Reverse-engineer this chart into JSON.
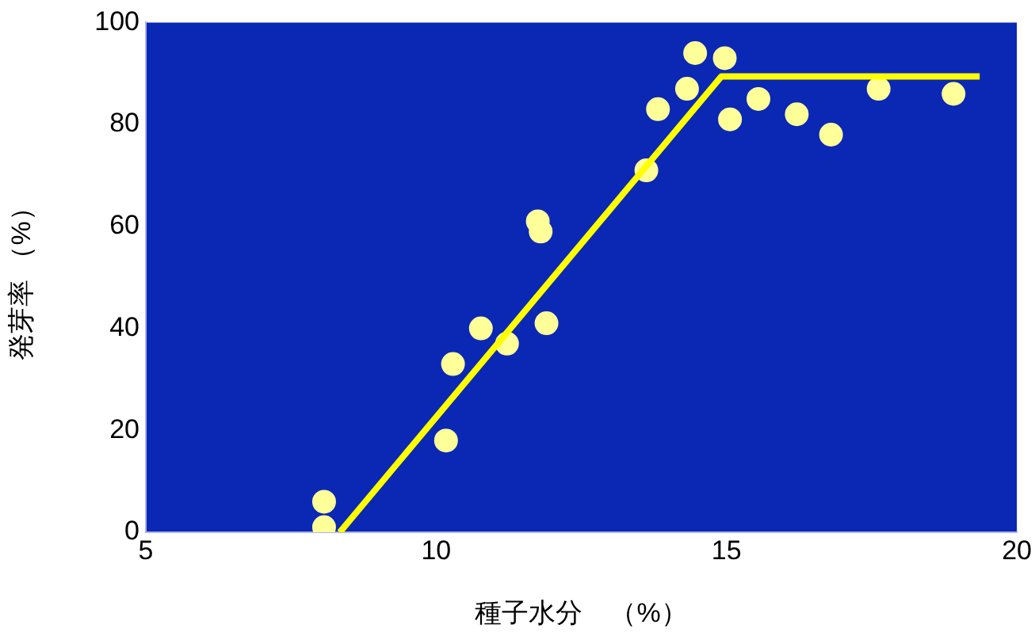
{
  "chart_data": {
    "type": "scatter",
    "xlabel": "種子水分　（%）",
    "ylabel": "発芽率 （%）",
    "xlim": [
      5,
      20
    ],
    "xticks": [
      5,
      10,
      15,
      20
    ],
    "ylim": [
      0,
      100
    ],
    "yticks": [
      0,
      20,
      40,
      60,
      80,
      100
    ],
    "marker": "circle",
    "legend": false,
    "series": [
      {
        "color": "#ffff99",
        "x": [
          8.07,
          8.07,
          10.17,
          10.29,
          10.77,
          11.22,
          11.75,
          11.8,
          11.9,
          13.62,
          13.82,
          14.32,
          14.46,
          14.97,
          15.06,
          15.55,
          16.21,
          16.8,
          17.62,
          18.91
        ],
        "values": [
          6,
          1,
          18,
          33,
          40,
          37,
          61,
          59,
          41,
          71,
          83,
          87,
          94,
          93,
          81,
          85,
          82,
          78,
          87,
          86
        ]
      },
      {
        "type": "line",
        "color": "#ffff00",
        "marker": "none",
        "x": [
          8.34,
          14.91,
          19.36
        ],
        "values": [
          0,
          89.4,
          89.4
        ]
      }
    ]
  }
}
